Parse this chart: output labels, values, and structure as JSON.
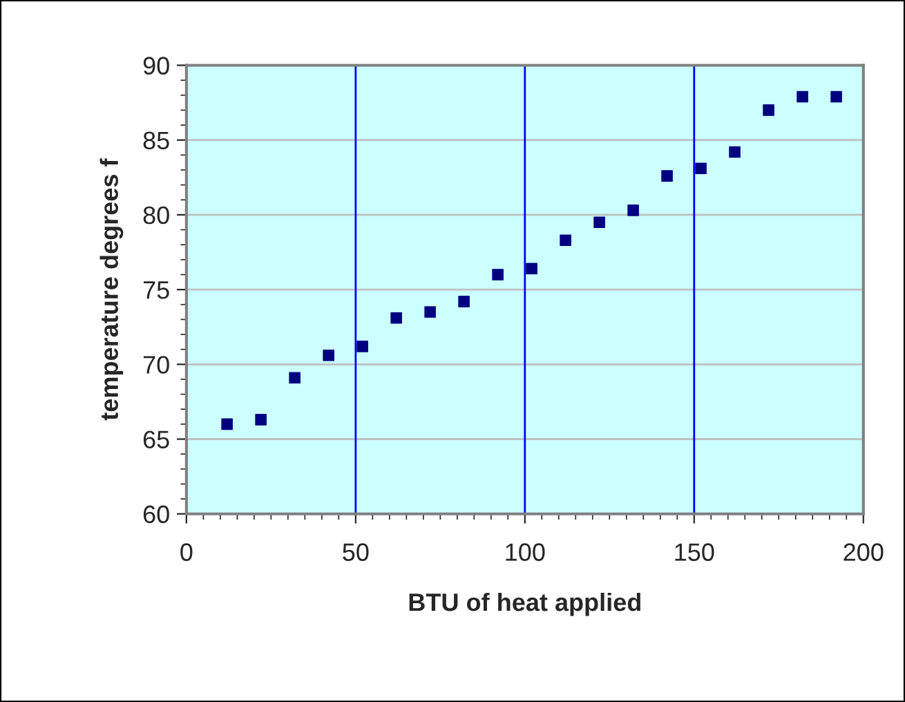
{
  "chart_data": {
    "type": "scatter",
    "xlabel": "BTU of heat applied",
    "ylabel": "temperature degrees f",
    "x": [
      12,
      22,
      32,
      42,
      52,
      62,
      72,
      82,
      92,
      102,
      112,
      122,
      132,
      142,
      152,
      162,
      172,
      182,
      192
    ],
    "series": [
      {
        "color": "#000080",
        "values": [
          66.0,
          66.3,
          69.1,
          70.6,
          71.2,
          73.1,
          73.5,
          74.2,
          76.0,
          76.4,
          78.3,
          79.5,
          80.3,
          82.6,
          83.1,
          84.2,
          87.0,
          87.9,
          87.9
        ]
      }
    ],
    "marker": "square",
    "xlim": [
      0,
      200
    ],
    "xticks": [
      0,
      50,
      100,
      150,
      200
    ],
    "ylim": [
      60,
      90
    ],
    "yticks": [
      60,
      65,
      70,
      75,
      80,
      85,
      90
    ],
    "grid": "y",
    "ref_lines": [
      {
        "axis": "x",
        "value": 50,
        "color": "#0000ff"
      },
      {
        "axis": "x",
        "value": 100,
        "color": "#0000ff"
      },
      {
        "axis": "x",
        "value": 150,
        "color": "#0000ff"
      }
    ],
    "legend": false
  }
}
